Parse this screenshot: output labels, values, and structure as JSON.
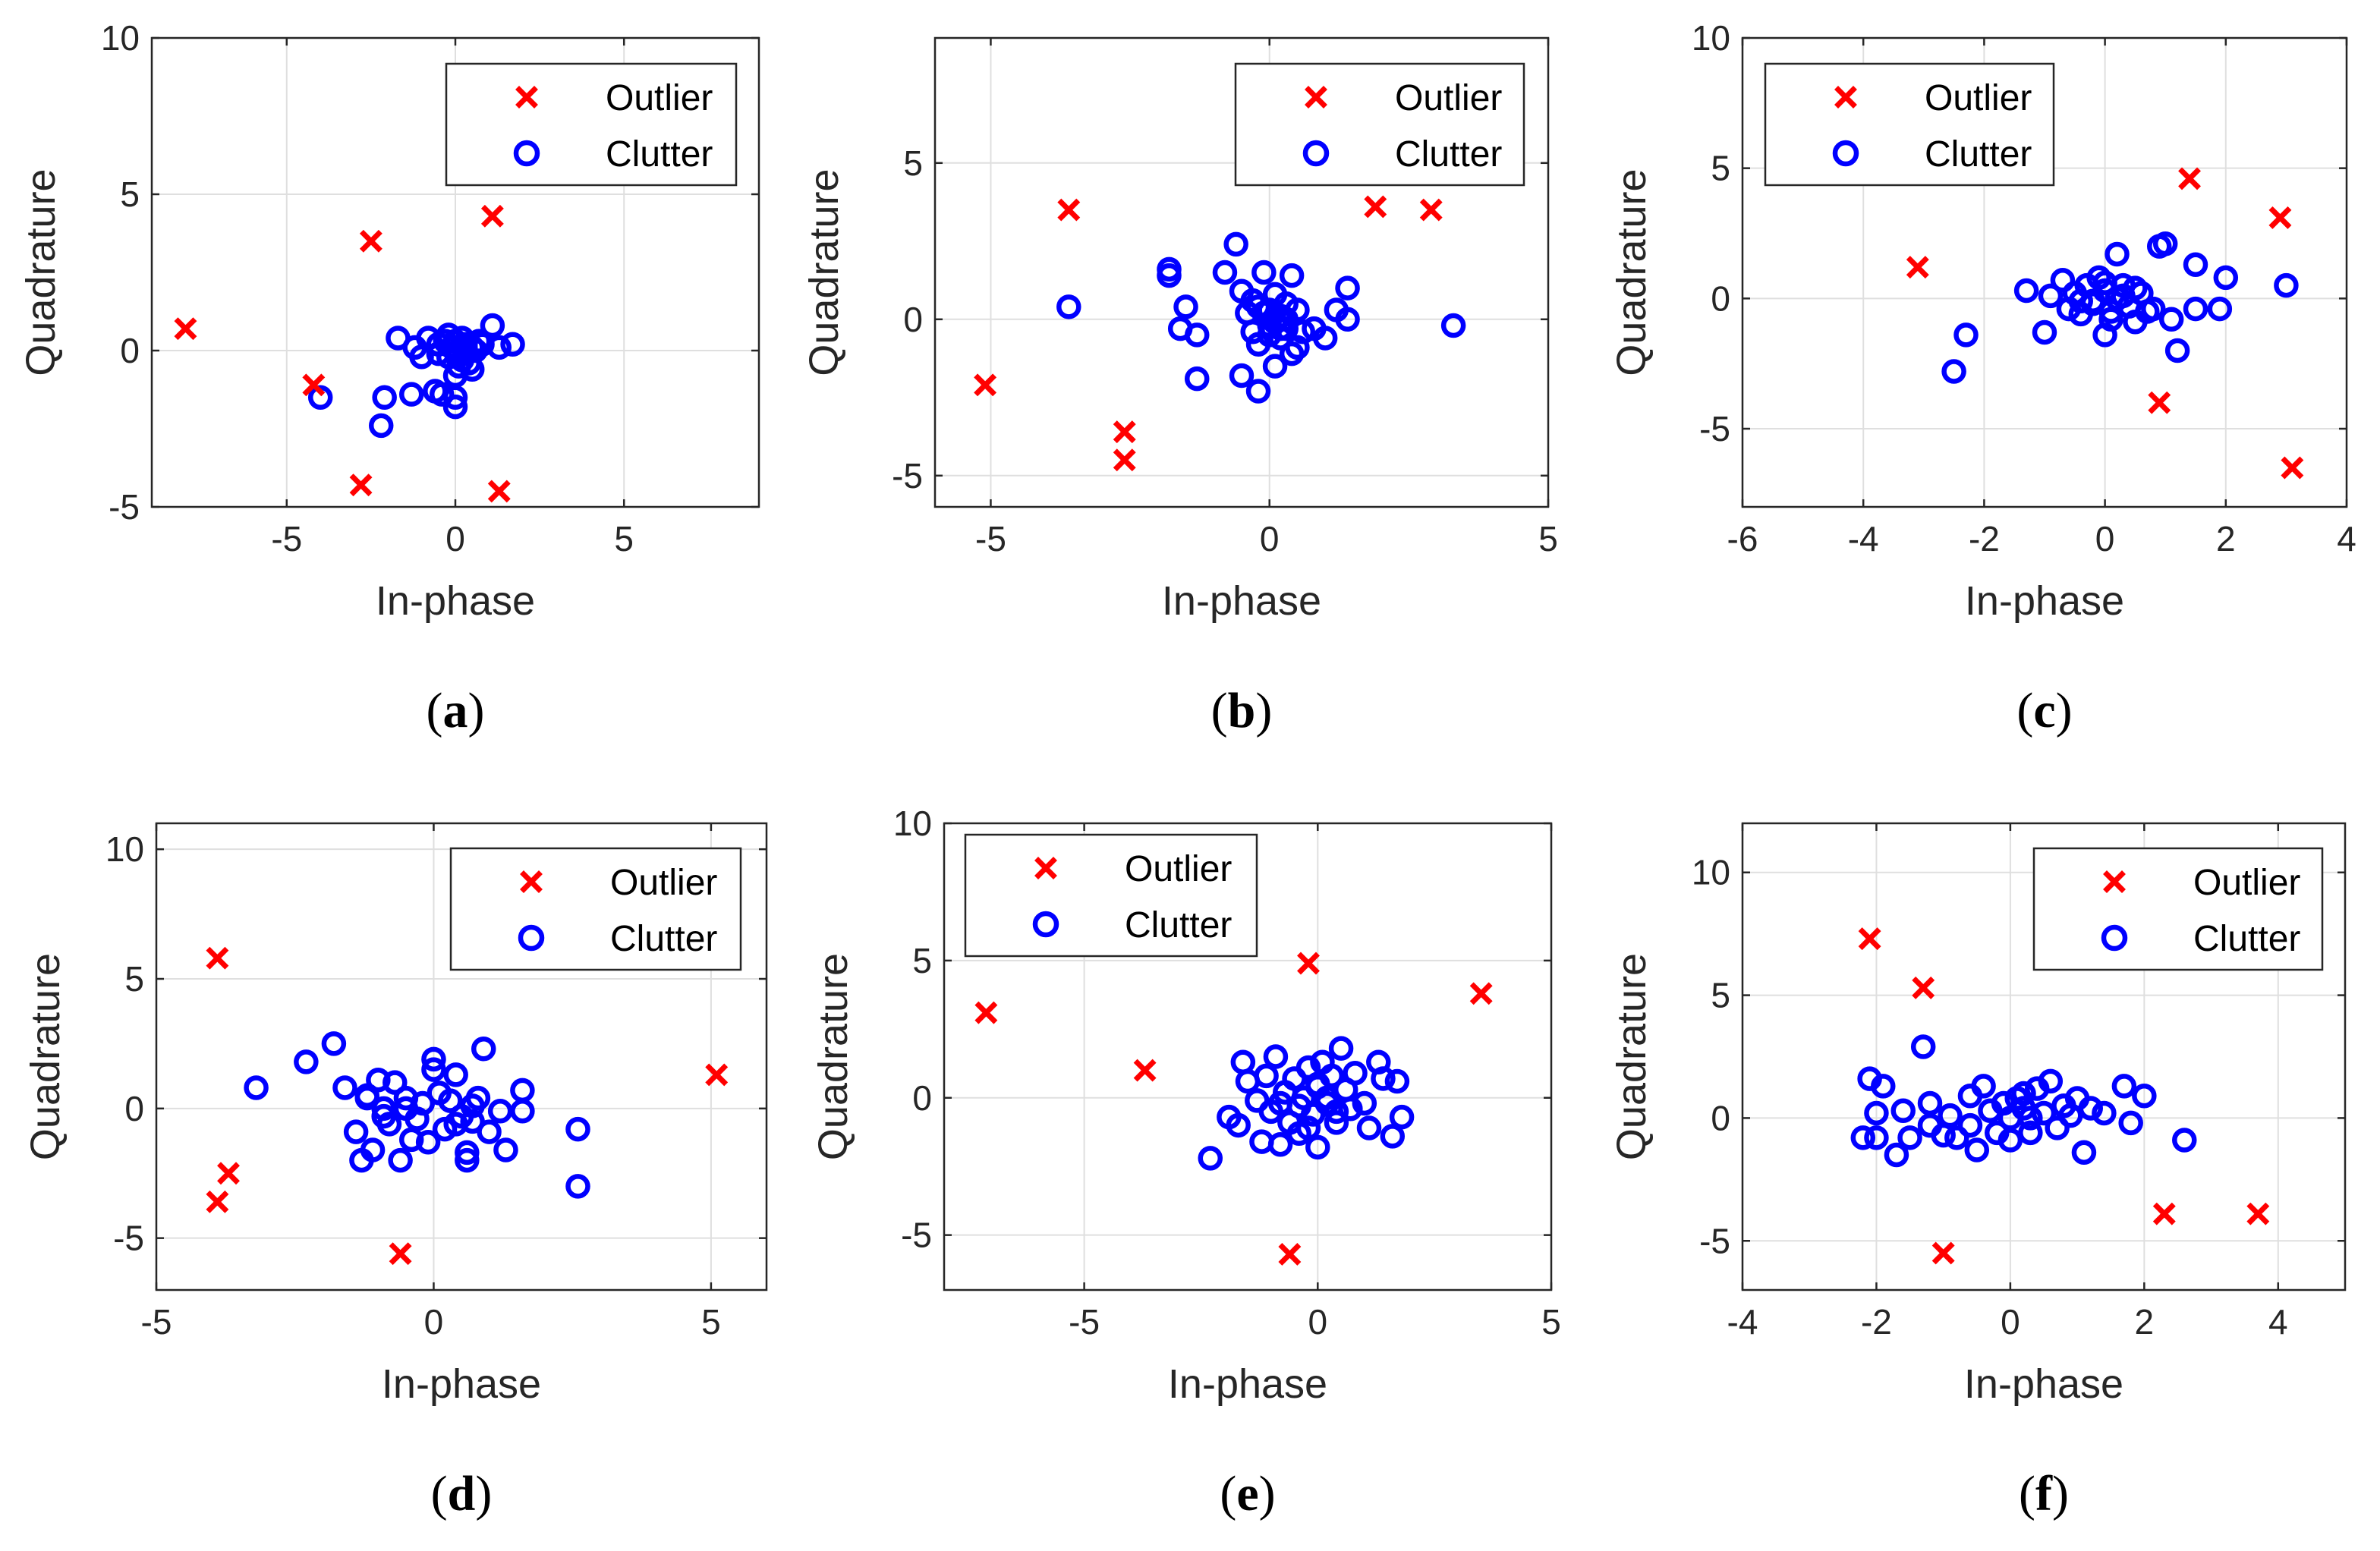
{
  "colors": {
    "outlier": "#ff0000",
    "clutter": "#0000ff",
    "axes": "#262626",
    "grid": "#dfdfdf"
  },
  "chart_data": [
    {
      "panel": "a",
      "type": "scatter",
      "xlabel": "In-phase",
      "ylabel": "Quadrature",
      "xlim": [
        -9,
        9
      ],
      "ylim": [
        -5,
        10
      ],
      "xticks": [
        -5,
        0,
        5
      ],
      "yticks": [
        -5,
        0,
        5,
        10
      ],
      "grid": true,
      "legend_position": "top-right",
      "series": [
        {
          "name": "Outlier",
          "marker": "x",
          "x": [
            -8.0,
            -4.2,
            -2.5,
            1.1,
            -2.8,
            1.3
          ],
          "y": [
            0.7,
            -1.1,
            3.5,
            4.3,
            -4.3,
            -4.5
          ]
        },
        {
          "name": "Clutter",
          "marker": "o",
          "x": [
            -4.0,
            -2.2,
            -2.1,
            -1.7,
            -1.3,
            -1.2,
            -1.0,
            -0.8,
            -0.6,
            -0.5,
            -0.4,
            -0.3,
            -0.2,
            -0.1,
            0.0,
            0.0,
            0.1,
            0.1,
            0.2,
            0.2,
            0.3,
            0.3,
            0.4,
            0.5,
            0.6,
            0.7,
            0.8,
            1.1,
            1.3,
            1.7,
            0.0,
            -0.2,
            0.0,
            0.3,
            -0.5,
            0.5
          ],
          "y": [
            -1.5,
            -2.4,
            -1.5,
            0.4,
            -1.4,
            0.1,
            -0.2,
            0.4,
            -1.3,
            0.2,
            -1.4,
            0.3,
            -0.2,
            0.1,
            0.3,
            -1.5,
            0.0,
            -0.5,
            0.4,
            -0.3,
            0.1,
            0.2,
            -0.4,
            0.1,
            0.0,
            0.3,
            0.2,
            0.8,
            0.1,
            0.2,
            -1.8,
            0.5,
            -0.8,
            -0.1,
            -0.1,
            -0.6
          ]
        }
      ],
      "panel_label": "a"
    },
    {
      "panel": "b",
      "type": "scatter",
      "xlabel": "In-phase",
      "ylabel": "Quadrature",
      "xlim": [
        -6,
        5
      ],
      "ylim": [
        -6,
        9
      ],
      "xticks": [
        -5,
        0,
        5
      ],
      "yticks": [
        -5,
        0,
        5
      ],
      "grid": true,
      "legend_position": "top-right",
      "series": [
        {
          "name": "Outlier",
          "marker": "x",
          "x": [
            -5.1,
            -3.6,
            -2.6,
            -2.6,
            1.9,
            2.9
          ],
          "y": [
            -2.1,
            3.5,
            -3.6,
            -4.5,
            3.6,
            3.5
          ]
        },
        {
          "name": "Clutter",
          "marker": "o",
          "x": [
            -3.6,
            -1.8,
            -1.8,
            -1.6,
            -1.5,
            -1.3,
            -1.3,
            -0.8,
            -0.6,
            -0.5,
            -0.5,
            -0.4,
            -0.3,
            -0.2,
            -0.2,
            -0.1,
            0.0,
            0.0,
            0.1,
            0.1,
            0.2,
            0.2,
            0.3,
            0.3,
            0.4,
            0.4,
            0.5,
            0.6,
            0.8,
            1.0,
            1.2,
            1.4,
            1.4,
            3.3,
            -0.2,
            0.1,
            0.3,
            -0.3,
            0.0,
            0.5,
            -0.1,
            0.2
          ],
          "y": [
            0.4,
            1.4,
            1.6,
            -0.3,
            0.4,
            -1.9,
            -0.5,
            1.5,
            2.4,
            0.9,
            -1.8,
            0.2,
            -0.4,
            -2.3,
            0.4,
            1.5,
            -0.2,
            0.3,
            -1.5,
            0.8,
            -0.6,
            0.1,
            0.5,
            -0.3,
            1.4,
            -1.1,
            0.3,
            -0.4,
            -0.3,
            -0.6,
            0.3,
            1.0,
            0.0,
            -0.2,
            -0.8,
            -0.1,
            0.0,
            0.6,
            -0.5,
            -0.9,
            0.2,
            -0.3
          ]
        }
      ],
      "panel_label": "b"
    },
    {
      "panel": "c",
      "type": "scatter",
      "xlabel": "In-phase",
      "ylabel": "Quadrature",
      "xlim": [
        -6,
        4
      ],
      "ylim": [
        -8,
        10
      ],
      "xticks": [
        -6,
        -4,
        -2,
        0,
        2,
        4
      ],
      "yticks": [
        -5,
        0,
        5,
        10
      ],
      "grid": true,
      "legend_position": "top-left",
      "series": [
        {
          "name": "Outlier",
          "marker": "x",
          "x": [
            -3.1,
            1.4,
            2.9,
            0.9,
            3.1
          ],
          "y": [
            1.2,
            4.6,
            3.1,
            -4.0,
            -6.5
          ]
        },
        {
          "name": "Clutter",
          "marker": "o",
          "x": [
            -2.5,
            -2.3,
            -1.3,
            -1.0,
            -0.9,
            -0.7,
            -0.6,
            -0.5,
            -0.4,
            -0.3,
            -0.2,
            -0.1,
            0.0,
            0.0,
            0.1,
            0.2,
            0.2,
            0.3,
            0.4,
            0.5,
            0.6,
            0.7,
            0.9,
            1.0,
            1.1,
            1.2,
            1.5,
            1.5,
            1.9,
            2.0,
            3.0,
            0.1,
            -0.2,
            0.3,
            0.5,
            0.8,
            -0.4,
            0.0
          ],
          "y": [
            -2.8,
            -1.4,
            0.3,
            -1.3,
            0.1,
            0.7,
            -0.4,
            0.2,
            -0.6,
            0.5,
            -0.1,
            0.8,
            -1.4,
            0.3,
            -0.5,
            1.7,
            0.0,
            0.5,
            -0.3,
            -0.9,
            0.2,
            -0.5,
            2.0,
            2.1,
            -0.8,
            -2.0,
            1.3,
            -0.4,
            -0.4,
            0.8,
            0.5,
            -0.8,
            -0.2,
            0.1,
            0.4,
            -0.4,
            -0.1,
            0.6
          ]
        }
      ],
      "panel_label": "c"
    },
    {
      "panel": "d",
      "type": "scatter",
      "xlabel": "In-phase",
      "ylabel": "Quadrature",
      "xlim": [
        -5,
        6
      ],
      "ylim": [
        -7,
        11
      ],
      "xticks": [
        -5,
        0,
        5
      ],
      "yticks": [
        -5,
        0,
        5,
        10
      ],
      "grid": true,
      "legend_position": "top-right",
      "series": [
        {
          "name": "Outlier",
          "marker": "x",
          "x": [
            -3.9,
            -3.7,
            -3.9,
            -0.6,
            5.1
          ],
          "y": [
            5.8,
            -2.5,
            -3.6,
            -5.6,
            1.3
          ]
        },
        {
          "name": "Clutter",
          "marker": "o",
          "x": [
            -3.2,
            -2.3,
            -1.8,
            -1.6,
            -1.4,
            -1.3,
            -1.2,
            -1.1,
            -1.0,
            -0.9,
            -0.8,
            -0.7,
            -0.6,
            -0.5,
            -0.4,
            -0.3,
            -0.2,
            -0.1,
            0.0,
            0.0,
            0.1,
            0.2,
            0.3,
            0.4,
            0.5,
            0.6,
            0.6,
            0.7,
            0.8,
            0.9,
            1.0,
            1.2,
            1.3,
            1.6,
            1.6,
            2.6,
            2.6,
            -1.2,
            -0.9,
            0.4,
            -0.5,
            0.7
          ],
          "y": [
            0.8,
            1.8,
            2.5,
            0.8,
            -0.9,
            -2.0,
            0.4,
            -1.6,
            1.1,
            0.0,
            -0.6,
            1.0,
            -2.0,
            0.4,
            -1.2,
            -0.4,
            0.2,
            -1.3,
            1.9,
            1.5,
            0.6,
            -0.8,
            0.3,
            1.3,
            -0.3,
            -1.7,
            -2.0,
            -0.5,
            0.4,
            2.3,
            -0.9,
            -0.1,
            -1.6,
            0.7,
            -0.1,
            -0.8,
            -3.0,
            0.5,
            -0.3,
            -0.6,
            0.0,
            0.1
          ]
        }
      ],
      "panel_label": "d"
    },
    {
      "panel": "e",
      "type": "scatter",
      "xlabel": "In-phase",
      "ylabel": "Quadrature",
      "xlim": [
        -8,
        5
      ],
      "ylim": [
        -7,
        10
      ],
      "xticks": [
        -5,
        0,
        5
      ],
      "yticks": [
        -5,
        0,
        5,
        10
      ],
      "grid": true,
      "legend_position": "top-left",
      "series": [
        {
          "name": "Outlier",
          "marker": "x",
          "x": [
            -7.1,
            -3.7,
            -0.2,
            3.5,
            -0.6
          ],
          "y": [
            3.1,
            1.0,
            4.9,
            3.8,
            -5.7
          ]
        },
        {
          "name": "Clutter",
          "marker": "o",
          "x": [
            -2.3,
            -1.9,
            -1.7,
            -1.6,
            -1.5,
            -1.3,
            -1.2,
            -1.1,
            -1.0,
            -0.9,
            -0.8,
            -0.7,
            -0.6,
            -0.5,
            -0.4,
            -0.3,
            -0.2,
            -0.1,
            0.0,
            0.0,
            0.1,
            0.2,
            0.3,
            0.4,
            0.5,
            0.6,
            0.7,
            0.8,
            1.0,
            1.1,
            1.3,
            1.4,
            1.6,
            1.7,
            1.8,
            -0.4,
            0.2,
            -0.8,
            0.4,
            0.0,
            -0.2
          ],
          "y": [
            -2.2,
            -0.7,
            -1.0,
            1.3,
            0.6,
            -0.1,
            -1.6,
            0.8,
            -0.5,
            1.5,
            -1.7,
            0.2,
            -0.9,
            0.7,
            -1.3,
            0.0,
            1.1,
            -0.6,
            0.4,
            -1.8,
            1.3,
            -0.2,
            0.8,
            -0.9,
            1.8,
            0.3,
            -0.4,
            0.9,
            -0.2,
            -1.1,
            1.3,
            0.7,
            -1.4,
            0.6,
            -0.7,
            -0.3,
            0.0,
            -0.2,
            -0.5,
            0.5,
            -1.1
          ]
        }
      ],
      "panel_label": "e"
    },
    {
      "panel": "f",
      "type": "scatter",
      "xlabel": "In-phase",
      "ylabel": "Quadrature",
      "xlim": [
        -4,
        5
      ],
      "ylim": [
        -7,
        12
      ],
      "xticks": [
        -4,
        -2,
        0,
        2,
        4
      ],
      "yticks": [
        -5,
        0,
        5,
        10
      ],
      "grid": true,
      "legend_position": "top-right",
      "series": [
        {
          "name": "Outlier",
          "marker": "x",
          "x": [
            -2.1,
            -1.3,
            -1.0,
            2.3,
            3.7
          ],
          "y": [
            7.3,
            5.3,
            -5.5,
            -3.9,
            -3.9
          ]
        },
        {
          "name": "Clutter",
          "marker": "o",
          "x": [
            -2.2,
            -2.1,
            -2.0,
            -2.0,
            -1.9,
            -1.7,
            -1.6,
            -1.5,
            -1.3,
            -1.2,
            -1.2,
            -1.0,
            -0.9,
            -0.8,
            -0.6,
            -0.5,
            -0.4,
            -0.3,
            -0.2,
            -0.1,
            0.0,
            0.0,
            0.1,
            0.2,
            0.3,
            0.4,
            0.5,
            0.6,
            0.7,
            0.8,
            1.0,
            1.1,
            1.2,
            1.4,
            1.7,
            1.8,
            2.0,
            2.6,
            0.3,
            -0.6,
            0.9,
            0.2
          ],
          "y": [
            -0.8,
            1.6,
            0.2,
            -0.8,
            1.3,
            -1.5,
            0.3,
            -0.8,
            2.9,
            0.6,
            -0.3,
            -0.7,
            0.1,
            -0.8,
            0.9,
            -1.3,
            1.3,
            0.3,
            -0.6,
            0.6,
            0.0,
            -0.9,
            0.8,
            1.0,
            -0.6,
            1.2,
            0.2,
            1.5,
            -0.4,
            0.5,
            0.8,
            -1.4,
            0.4,
            0.2,
            1.3,
            -0.2,
            0.9,
            -0.9,
            0.0,
            -0.3,
            0.1,
            0.4
          ]
        }
      ],
      "panel_label": "f"
    }
  ]
}
